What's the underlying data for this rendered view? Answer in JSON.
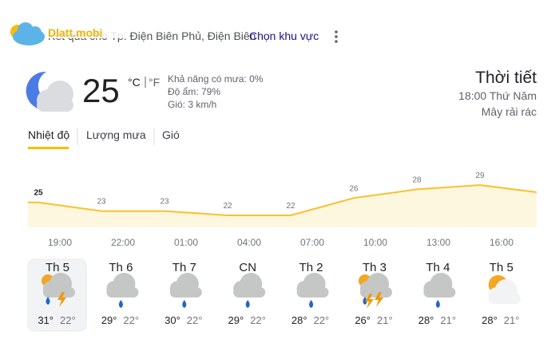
{
  "header": {
    "location": "Kết quả cho Tp. Điện Biên Phủ, Điện Biên",
    "change_location": "Chọn khu vực"
  },
  "current": {
    "temperature": 25,
    "unit_c": "°C",
    "unit_f": "°F",
    "precipitation": "Khả năng có mưa: 0%",
    "humidity": "Độ ẩm: 79%",
    "wind": "Gió: 3 km/h",
    "title": "Thời tiết",
    "time": "18:00 Thứ Năm",
    "condition": "Mây rải rác"
  },
  "tabs": [
    "Nhiệt độ",
    "Lượng mưa",
    "Gió"
  ],
  "hourly": {
    "times": [
      "19:00",
      "22:00",
      "01:00",
      "04:00",
      "07:00",
      "10:00",
      "13:00",
      "16:00"
    ],
    "temperatures": [
      25,
      23,
      23,
      22,
      22,
      26,
      28,
      29
    ]
  },
  "daily": [
    {
      "day": "Th 5",
      "high": "31°",
      "low": "22°"
    },
    {
      "day": "Th 6",
      "high": "29°",
      "low": "22°"
    },
    {
      "day": "Th 7",
      "high": "30°",
      "low": "22°"
    },
    {
      "day": "CN",
      "high": "29°",
      "low": "22°"
    },
    {
      "day": "Th 2",
      "high": "28°",
      "low": "22°"
    },
    {
      "day": "Th 3",
      "high": "26°",
      "low": "21°"
    },
    {
      "day": "Th 4",
      "high": "28°",
      "low": "21°"
    },
    {
      "day": "Th 5",
      "high": "28°",
      "low": "21°"
    }
  ]
}
